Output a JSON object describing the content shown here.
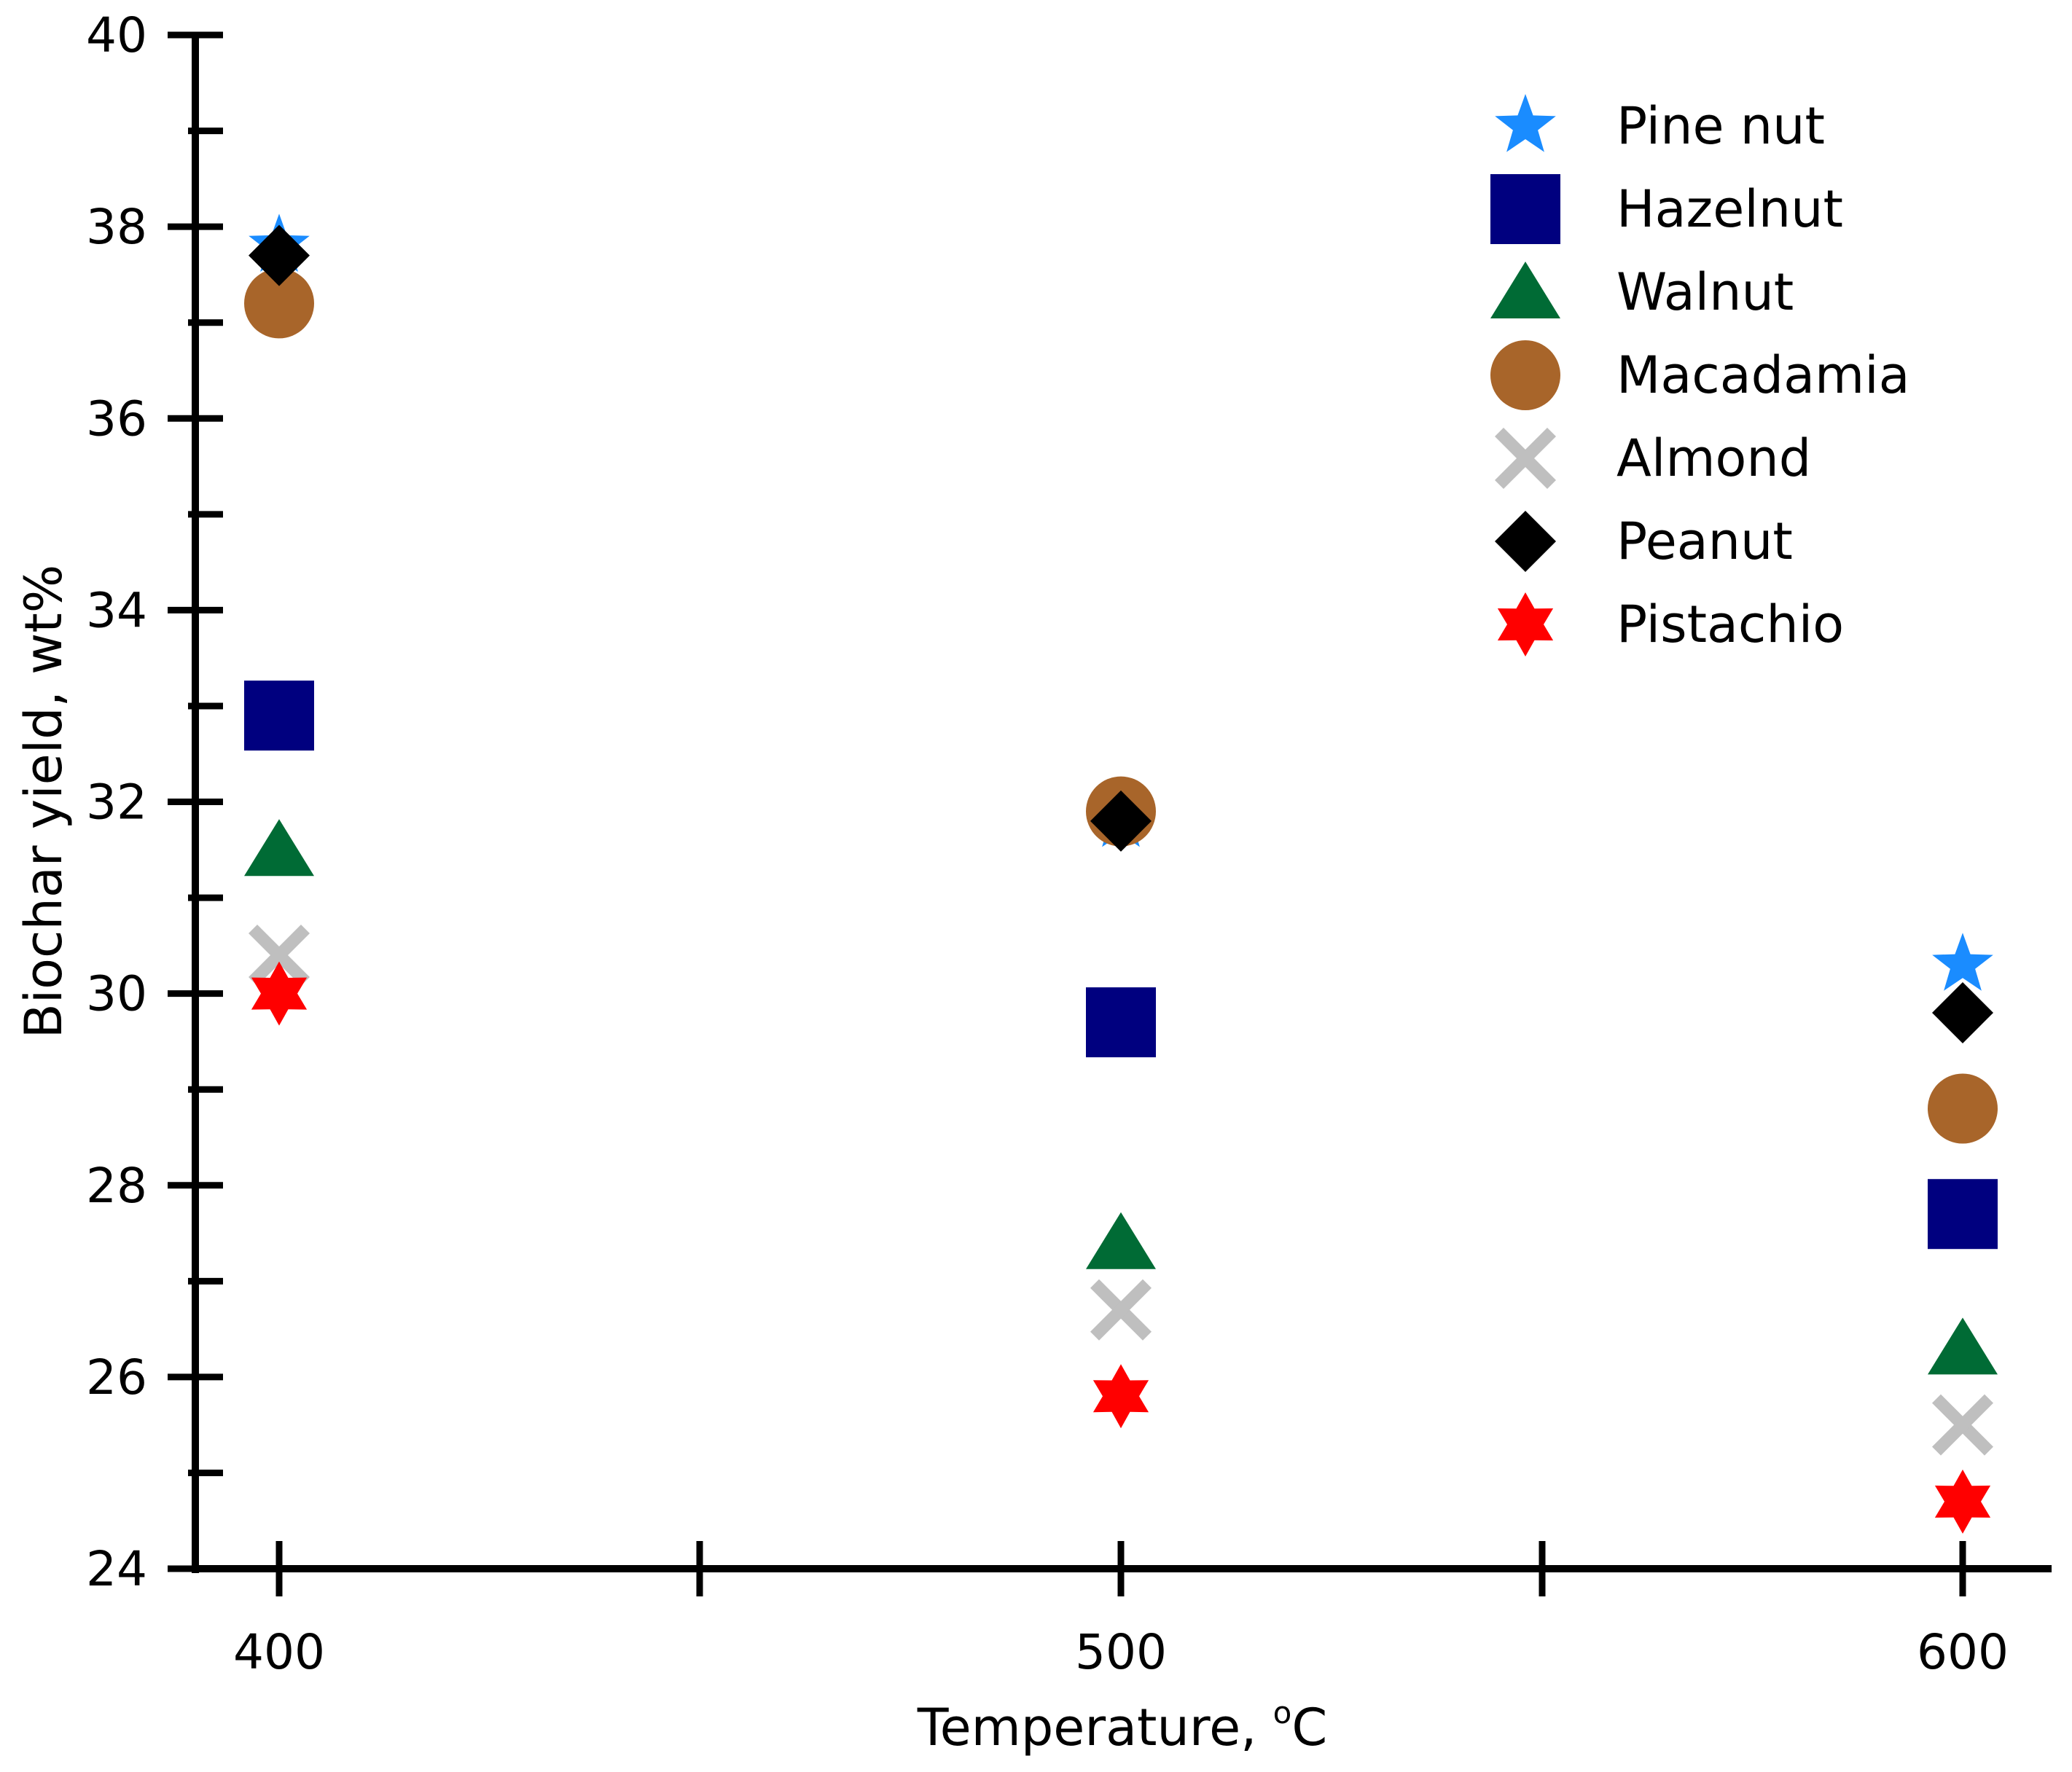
{
  "chart_data": {
    "type": "scatter",
    "title": "",
    "xlabel": "Temperature, ",
    "xlabel_unit_sup": "o",
    "xlabel_unit": "C",
    "ylabel": "Biochar yield, wt%",
    "x_categories": [
      400,
      500,
      600
    ],
    "x_tick_labels": [
      "400",
      "500",
      "600"
    ],
    "y_ticks": [
      24,
      26,
      28,
      30,
      32,
      34,
      36,
      38,
      40
    ],
    "y_tick_labels": [
      "24",
      "26",
      "28",
      "30",
      "32",
      "34",
      "36",
      "38",
      "40"
    ],
    "ylim": [
      24,
      40
    ],
    "grid": false,
    "legend_position": "top-right",
    "series": [
      {
        "name": "Pine nut",
        "marker": "star5",
        "color": "#1a8cff",
        "values": [
          37.8,
          31.8,
          30.3
        ]
      },
      {
        "name": "Hazelnut",
        "marker": "square",
        "color": "#00007f",
        "values": [
          32.9,
          29.7,
          27.7
        ]
      },
      {
        "name": "Walnut",
        "marker": "triangle",
        "color": "#006b35",
        "values": [
          31.5,
          27.4,
          26.3
        ]
      },
      {
        "name": "Macadamia",
        "marker": "circle",
        "color": "#a8652a",
        "values": [
          37.2,
          31.9,
          28.8
        ]
      },
      {
        "name": "Almond",
        "marker": "x",
        "color": "#bfbfbf",
        "values": [
          30.4,
          26.7,
          25.5
        ]
      },
      {
        "name": "Peanut",
        "marker": "diamond",
        "color": "#000000",
        "values": [
          37.7,
          31.8,
          29.8
        ]
      },
      {
        "name": "Pistachio",
        "marker": "star6",
        "color": "#ff0000",
        "values": [
          30.0,
          25.8,
          24.7
        ]
      }
    ]
  }
}
